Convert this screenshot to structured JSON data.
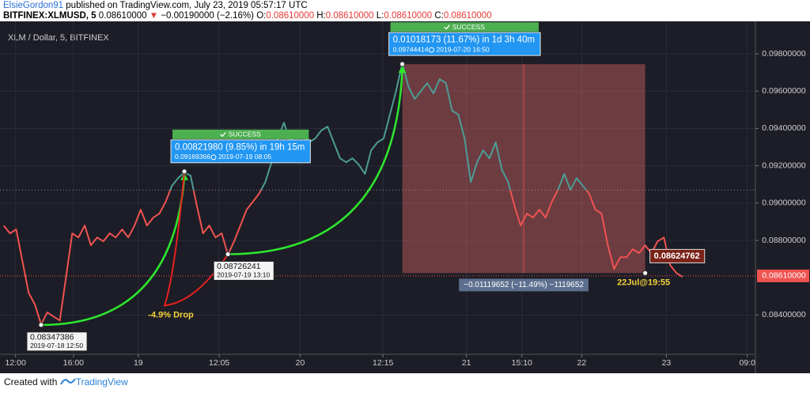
{
  "header": {
    "author": "ElsieGordon91",
    "published": "published on TradingView.com, July 23, 2019 05:57:17 UTC",
    "symbol": "BITFINEX:XLMUSD, 5",
    "last": "0.08610000",
    "change": "−0.00190000 (−2.16%)",
    "ohlc": [
      {
        "key": "O:",
        "value": "0.08610000"
      },
      {
        "key": "H:",
        "value": "0.08610000"
      },
      {
        "key": "L:",
        "value": "0.08610000"
      },
      {
        "key": "C:",
        "value": "0.08610000"
      }
    ]
  },
  "chart_data": {
    "type": "line",
    "legend": "XLM / Dollar, 5, BITFINEX",
    "values": [
      0.0888,
      0.08838,
      0.08859,
      0.08689,
      0.0852,
      0.08456,
      0.0835,
      0.08414,
      0.08392,
      0.08371,
      0.08604,
      0.08838,
      0.08816,
      0.0888,
      0.08774,
      0.08816,
      0.08795,
      0.08838,
      0.08816,
      0.08859,
      0.08816,
      0.0888,
      0.08965,
      0.0888,
      0.08922,
      0.08944,
      0.09007,
      0.09092,
      0.09134,
      0.09164,
      0.09147,
      0.08986,
      0.08838,
      0.0888,
      0.08816,
      0.08838,
      0.08723,
      0.08795,
      0.0888,
      0.08965,
      0.09007,
      0.0905,
      0.09113,
      0.09219,
      0.09346,
      0.09431,
      0.09325,
      0.09389,
      0.09368,
      0.09325,
      0.09346,
      0.09389,
      0.0941,
      0.09325,
      0.0924,
      0.09219,
      0.0924,
      0.09206,
      0.09156,
      0.09283,
      0.09325,
      0.09346,
      0.09474,
      0.09601,
      0.09749,
      0.09622,
      0.09558,
      0.09601,
      0.09643,
      0.09588,
      0.09664,
      0.09643,
      0.09495,
      0.09474,
      0.09346,
      0.09113,
      0.09219,
      0.09283,
      0.0924,
      0.09325,
      0.09177,
      0.09113,
      0.08986,
      0.0888,
      0.08944,
      0.08922,
      0.08965,
      0.08922,
      0.09007,
      0.09071,
      0.09156,
      0.09071,
      0.09134,
      0.09092,
      0.0905,
      0.08965,
      0.08944,
      0.08774,
      0.08647,
      0.0871,
      0.0871,
      0.08753,
      0.08732,
      0.08774,
      0.08732,
      0.08795,
      0.08816,
      0.08668,
      0.08626,
      0.08604
    ],
    "up_color": "#4e9c94",
    "down_color": "#ef5350",
    "reference_line": 0.0907,
    "last_price": {
      "value": 0.0861,
      "label": "0.08610000"
    },
    "xlim": [
      -0.6,
      120.7
    ],
    "ylim": [
      0.0819,
      0.0994
    ],
    "xticks": [
      {
        "value": 1.9,
        "label": "12:00"
      },
      {
        "value": 11.2,
        "label": "16:00"
      },
      {
        "value": 21.6,
        "label": "19"
      },
      {
        "value": 34.6,
        "label": "12:05"
      },
      {
        "value": 47.6,
        "label": "20"
      },
      {
        "value": 60.9,
        "label": "12:15"
      },
      {
        "value": 74.3,
        "label": "21"
      },
      {
        "value": 83.2,
        "label": "15:10"
      },
      {
        "value": 92.8,
        "label": "22"
      },
      {
        "value": 106.4,
        "label": "23"
      },
      {
        "value": 119.4,
        "label": "09:0"
      }
    ],
    "yticks": [
      {
        "value": 0.084,
        "label": "0.08400000"
      },
      {
        "value": 0.088,
        "label": "0.08800000"
      },
      {
        "value": 0.09,
        "label": "0.09000000"
      },
      {
        "value": 0.092,
        "label": "0.09200000"
      },
      {
        "value": 0.094,
        "label": "0.09400000"
      },
      {
        "value": 0.096,
        "label": "0.09600000"
      },
      {
        "value": 0.098,
        "label": "0.09800000"
      }
    ],
    "annotations": [
      {
        "x": 6,
        "y": 0.08347386,
        "date": "2019-07-18 12:50"
      },
      {
        "x": 36,
        "y": 0.08726241,
        "date": "2019-07-19 13:10"
      },
      {
        "x": 103,
        "y": 0.08624762,
        "time": "22Jul@19:55"
      }
    ],
    "measures": [
      {
        "x": 29,
        "y": 0.09169366,
        "change": "0.00821980 (9.85%) in 19h 15m",
        "date": "2019-07-19  08:05",
        "status": "SUCCESS"
      },
      {
        "x": 64,
        "y": 0.09744414,
        "change": "0.01018173 (11.67%) in 1d 3h 40m",
        "date": "2019-07-20  16:50",
        "status": "SUCCESS"
      }
    ],
    "drop_label": "-4.9% Drop",
    "range_label": "−0.01119652 (−11.49%) −1119652"
  },
  "footer": {
    "text": "Created with",
    "brand": "TradingView"
  }
}
